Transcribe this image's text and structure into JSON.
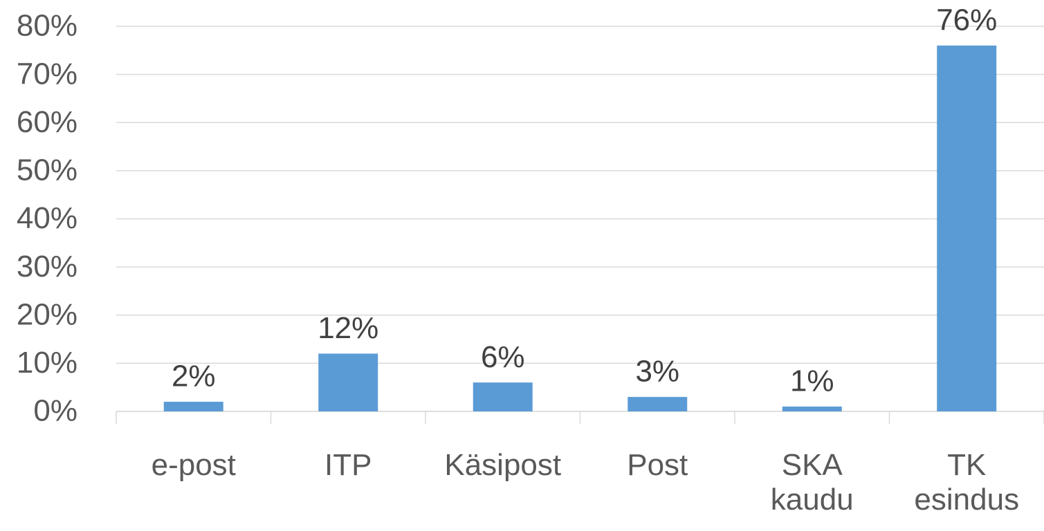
{
  "chart_data": {
    "type": "bar",
    "categories": [
      "e-post",
      "ITP",
      "Käsipost",
      "Post",
      "SKA kaudu",
      "TK esindus"
    ],
    "values": [
      2,
      12,
      6,
      3,
      1,
      76
    ],
    "value_labels": [
      "2%",
      "12%",
      "6%",
      "3%",
      "1%",
      "76%"
    ],
    "color": "#5b9bd5",
    "ylim": [
      0,
      80
    ],
    "yticks": [
      {
        "value": 0,
        "label": "0%"
      },
      {
        "value": 10,
        "label": "10%"
      },
      {
        "value": 20,
        "label": "20%"
      },
      {
        "value": 30,
        "label": "30%"
      },
      {
        "value": 40,
        "label": "40%"
      },
      {
        "value": 50,
        "label": "50%"
      },
      {
        "value": 60,
        "label": "60%"
      },
      {
        "value": 70,
        "label": "70%"
      },
      {
        "value": 80,
        "label": "80%"
      }
    ],
    "grid": true
  }
}
